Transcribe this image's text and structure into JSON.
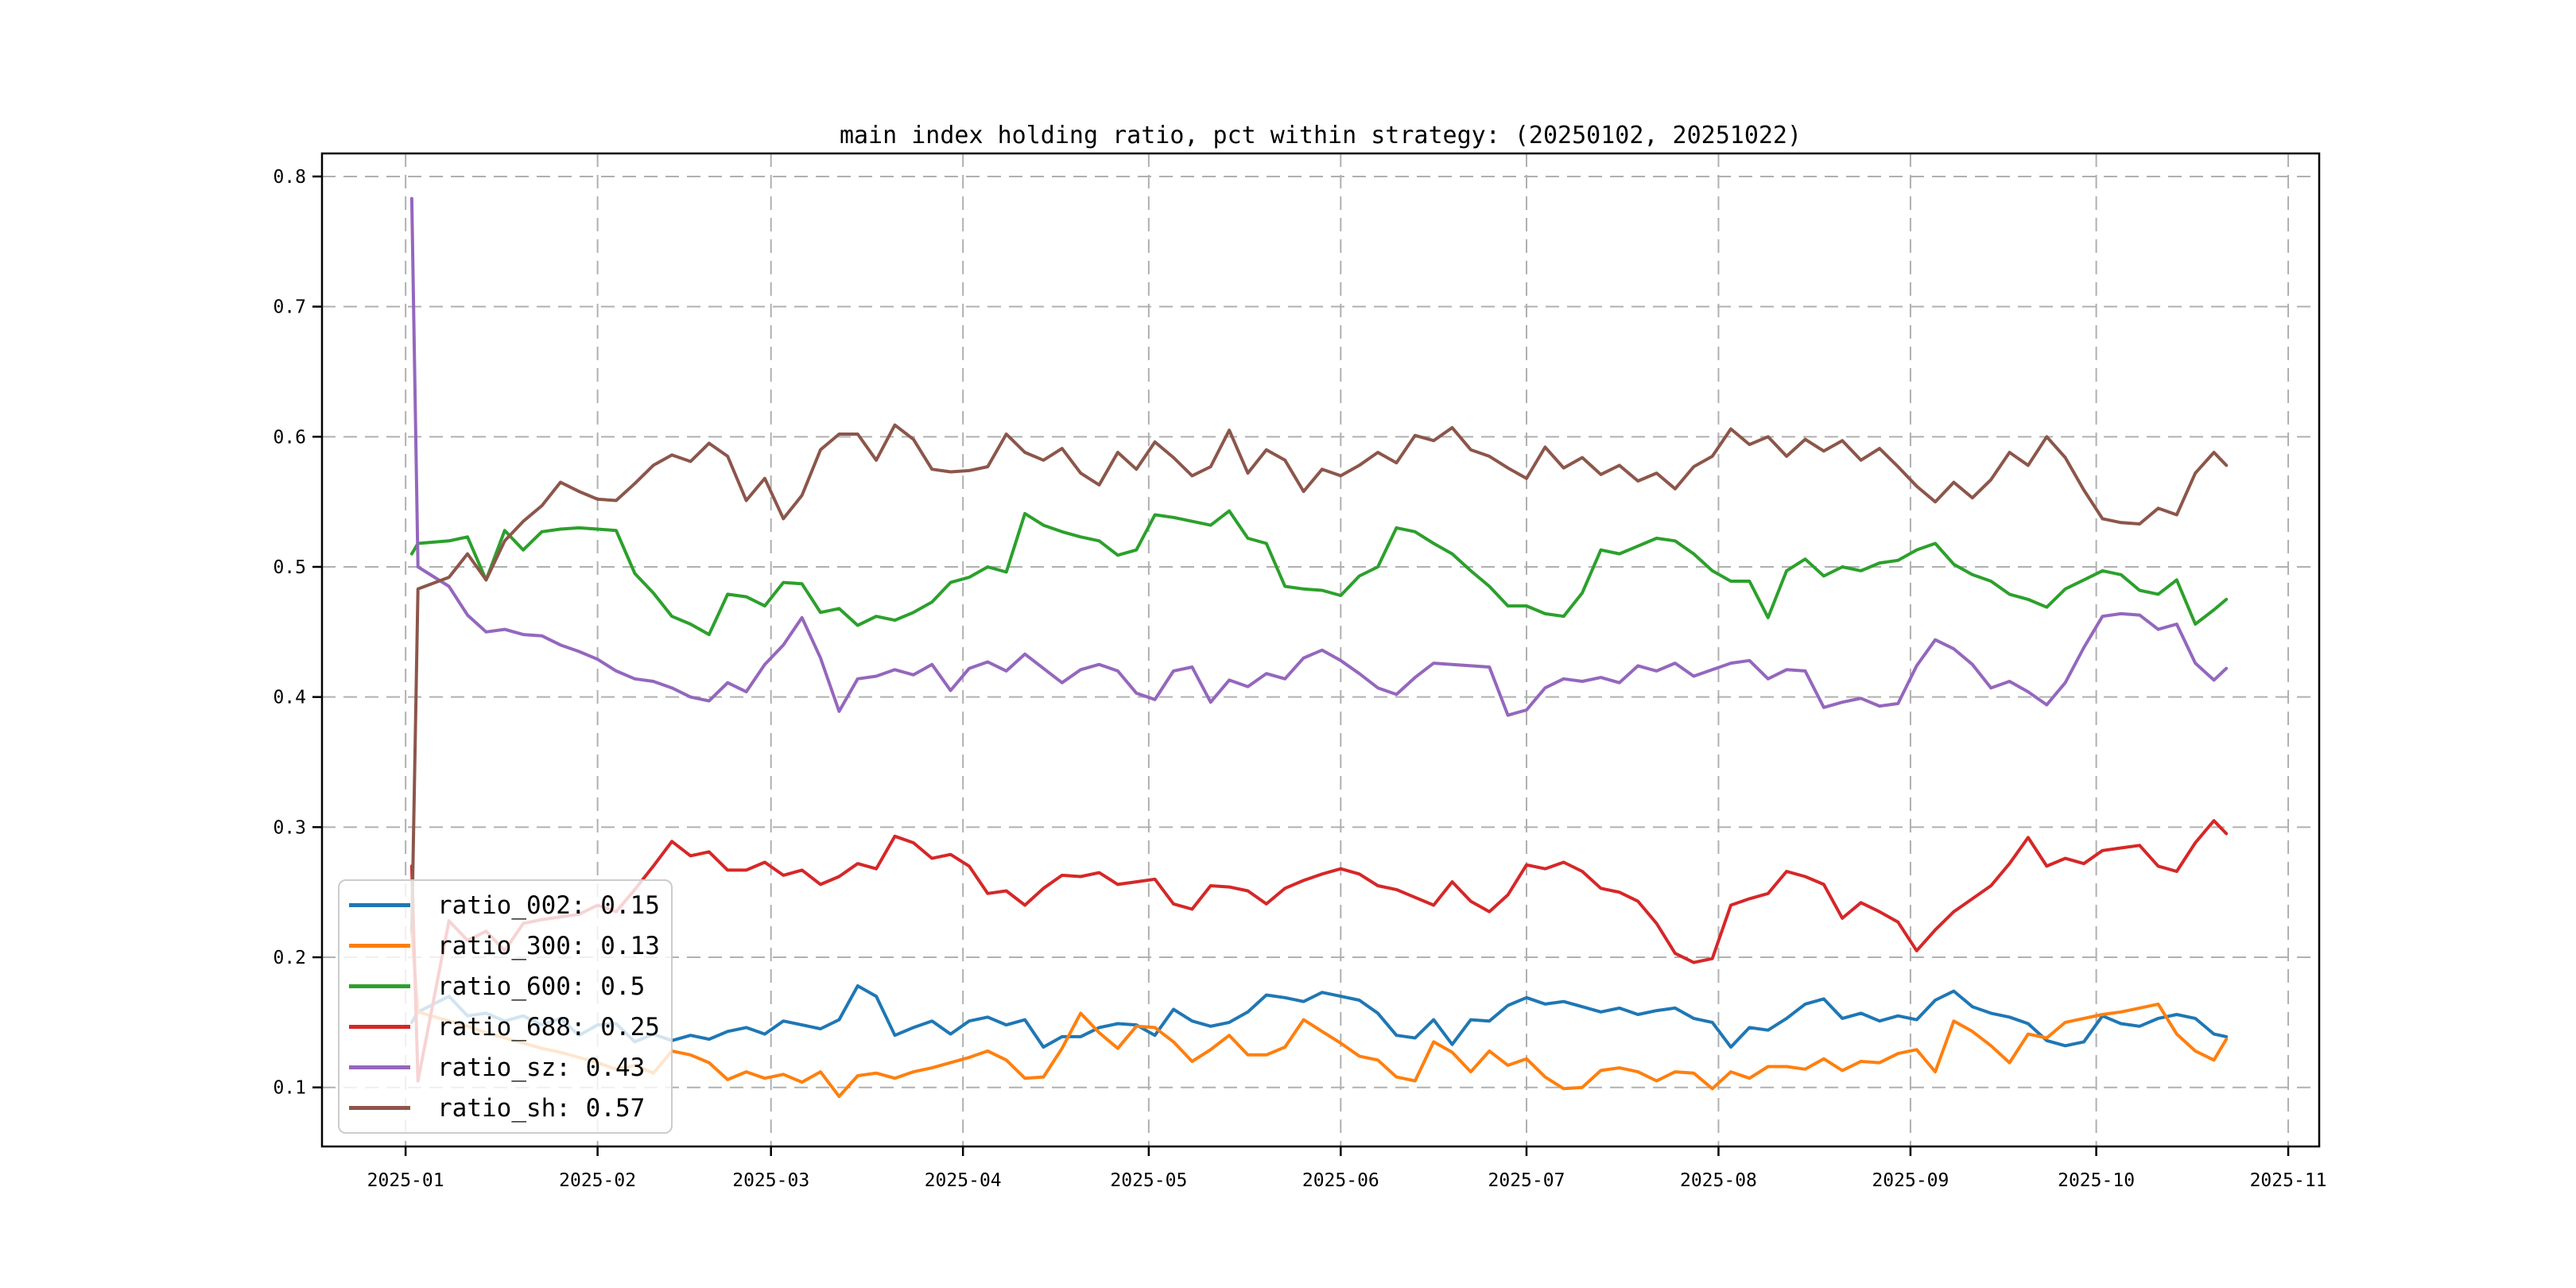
{
  "chart_data": {
    "type": "line",
    "title": "main index holding ratio, pct within strategy: (20250102, 20251022)",
    "xlabel": "",
    "ylabel": "",
    "grid": true,
    "legend_position": "lower left",
    "x_tick_labels": [
      "2025-01",
      "2025-02",
      "2025-03",
      "2025-04",
      "2025-05",
      "2025-06",
      "2025-07",
      "2025-08",
      "2025-09",
      "2025-10",
      "2025-11"
    ],
    "x_tick_days": [
      0,
      31,
      59,
      90,
      120,
      151,
      181,
      212,
      243,
      273,
      304
    ],
    "xlim_days": [
      -13.5,
      309
    ],
    "y_ticks": [
      0.1,
      0.2,
      0.3,
      0.4,
      0.5,
      0.6,
      0.7,
      0.8
    ],
    "y_tick_labels": [
      "0.1",
      "0.2",
      "0.3",
      "0.4",
      "0.5",
      "0.6",
      "0.7",
      "0.8"
    ],
    "ylim": [
      0.0546,
      0.8177
    ],
    "colors": {
      "blue": "#1f77b4",
      "orange": "#ff7f0e",
      "green": "#2ca02c",
      "red": "#d62728",
      "purple": "#9467bd",
      "brown": "#8c564b",
      "grid": "#b0b0b0",
      "axis": "#000000",
      "legend_border": "#cccccc"
    },
    "x_days": [
      1,
      2,
      7,
      10,
      13,
      16,
      19,
      22,
      25,
      28,
      31,
      34,
      37,
      40,
      43,
      46,
      49,
      52,
      55,
      58,
      61,
      64,
      67,
      70,
      73,
      76,
      79,
      82,
      85,
      88,
      91,
      94,
      97,
      100,
      103,
      106,
      109,
      112,
      115,
      118,
      121,
      124,
      127,
      130,
      133,
      136,
      139,
      142,
      145,
      148,
      151,
      154,
      157,
      160,
      163,
      166,
      169,
      172,
      175,
      178,
      181,
      184,
      187,
      190,
      193,
      196,
      199,
      202,
      205,
      208,
      211,
      214,
      217,
      220,
      223,
      226,
      229,
      232,
      235,
      238,
      241,
      244,
      247,
      250,
      253,
      256,
      259,
      262,
      265,
      268,
      271,
      274,
      277,
      280,
      283,
      286,
      289,
      292,
      294
    ],
    "series": [
      {
        "name": "ratio_002",
        "legend_label": "ratio_002: 0.15",
        "color": "#1f77b4",
        "values": [
          0.15,
          0.158,
          0.17,
          0.155,
          0.157,
          0.151,
          0.155,
          0.148,
          0.153,
          0.14,
          0.148,
          0.149,
          0.135,
          0.141,
          0.136,
          0.14,
          0.137,
          0.143,
          0.146,
          0.141,
          0.151,
          0.148,
          0.145,
          0.152,
          0.178,
          0.17,
          0.14,
          0.146,
          0.151,
          0.141,
          0.151,
          0.154,
          0.148,
          0.152,
          0.131,
          0.139,
          0.139,
          0.146,
          0.149,
          0.148,
          0.14,
          0.16,
          0.151,
          0.147,
          0.15,
          0.158,
          0.171,
          0.169,
          0.166,
          0.173,
          0.17,
          0.167,
          0.157,
          0.14,
          0.138,
          0.152,
          0.133,
          0.152,
          0.151,
          0.163,
          0.169,
          0.164,
          0.166,
          0.162,
          0.158,
          0.161,
          0.156,
          0.159,
          0.161,
          0.153,
          0.15,
          0.131,
          0.146,
          0.144,
          0.153,
          0.164,
          0.168,
          0.153,
          0.157,
          0.151,
          0.155,
          0.152,
          0.167,
          0.174,
          0.162,
          0.157,
          0.154,
          0.149,
          0.136,
          0.132,
          0.135,
          0.155,
          0.149,
          0.147,
          0.153,
          0.156,
          0.153,
          0.141,
          0.139
        ]
      },
      {
        "name": "ratio_300",
        "legend_label": "ratio_300: 0.13",
        "color": "#ff7f0e",
        "values": [
          0.22,
          0.158,
          0.151,
          0.147,
          0.142,
          0.138,
          0.134,
          0.13,
          0.127,
          0.123,
          0.119,
          0.114,
          0.117,
          0.111,
          0.128,
          0.125,
          0.119,
          0.106,
          0.112,
          0.107,
          0.11,
          0.104,
          0.112,
          0.093,
          0.109,
          0.111,
          0.107,
          0.112,
          0.115,
          0.119,
          0.123,
          0.128,
          0.121,
          0.107,
          0.108,
          0.13,
          0.157,
          0.142,
          0.13,
          0.147,
          0.146,
          0.135,
          0.12,
          0.129,
          0.14,
          0.125,
          0.125,
          0.131,
          0.152,
          0.143,
          0.134,
          0.124,
          0.121,
          0.108,
          0.105,
          0.135,
          0.127,
          0.112,
          0.128,
          0.117,
          0.122,
          0.108,
          0.099,
          0.1,
          0.113,
          0.115,
          0.112,
          0.105,
          0.112,
          0.111,
          0.099,
          0.112,
          0.107,
          0.116,
          0.116,
          0.114,
          0.122,
          0.113,
          0.12,
          0.119,
          0.126,
          0.129,
          0.112,
          0.151,
          0.143,
          0.132,
          0.119,
          0.141,
          0.138,
          0.15,
          0.153,
          0.156,
          0.158,
          0.161,
          0.164,
          0.141,
          0.128,
          0.121,
          0.137
        ]
      },
      {
        "name": "ratio_600",
        "legend_label": "ratio_600: 0.5",
        "color": "#2ca02c",
        "values": [
          0.51,
          0.518,
          0.52,
          0.523,
          0.49,
          0.528,
          0.513,
          0.527,
          0.529,
          0.53,
          0.529,
          0.528,
          0.495,
          0.48,
          0.462,
          0.456,
          0.448,
          0.479,
          0.477,
          0.47,
          0.488,
          0.487,
          0.465,
          0.468,
          0.455,
          0.462,
          0.459,
          0.465,
          0.473,
          0.488,
          0.492,
          0.5,
          0.496,
          0.541,
          0.532,
          0.527,
          0.523,
          0.52,
          0.509,
          0.513,
          0.54,
          0.538,
          0.535,
          0.532,
          0.543,
          0.522,
          0.518,
          0.485,
          0.483,
          0.482,
          0.478,
          0.493,
          0.5,
          0.53,
          0.527,
          0.518,
          0.51,
          0.497,
          0.485,
          0.47,
          0.47,
          0.464,
          0.462,
          0.48,
          0.513,
          0.51,
          0.516,
          0.522,
          0.52,
          0.51,
          0.497,
          0.489,
          0.489,
          0.461,
          0.497,
          0.506,
          0.493,
          0.5,
          0.497,
          0.503,
          0.505,
          0.513,
          0.518,
          0.502,
          0.494,
          0.489,
          0.479,
          0.475,
          0.469,
          0.483,
          0.49,
          0.497,
          0.494,
          0.482,
          0.479,
          0.49,
          0.456,
          0.467,
          0.475
        ]
      },
      {
        "name": "ratio_688",
        "legend_label": "ratio_688: 0.25",
        "color": "#d62728",
        "values": [
          0.27,
          0.105,
          0.228,
          0.213,
          0.22,
          0.205,
          0.226,
          0.229,
          0.231,
          0.233,
          0.24,
          0.235,
          0.252,
          0.27,
          0.289,
          0.278,
          0.281,
          0.267,
          0.267,
          0.273,
          0.263,
          0.267,
          0.256,
          0.262,
          0.272,
          0.268,
          0.293,
          0.288,
          0.276,
          0.279,
          0.27,
          0.249,
          0.251,
          0.24,
          0.253,
          0.263,
          0.262,
          0.265,
          0.256,
          0.258,
          0.26,
          0.241,
          0.237,
          0.255,
          0.254,
          0.251,
          0.241,
          0.253,
          0.259,
          0.264,
          0.268,
          0.264,
          0.255,
          0.252,
          0.246,
          0.24,
          0.258,
          0.243,
          0.235,
          0.248,
          0.271,
          0.268,
          0.273,
          0.266,
          0.253,
          0.25,
          0.243,
          0.226,
          0.203,
          0.196,
          0.199,
          0.24,
          0.245,
          0.249,
          0.266,
          0.262,
          0.256,
          0.23,
          0.242,
          0.235,
          0.227,
          0.205,
          0.221,
          0.235,
          0.245,
          0.255,
          0.272,
          0.292,
          0.27,
          0.276,
          0.272,
          0.282,
          0.284,
          0.286,
          0.27,
          0.266,
          0.288,
          0.305,
          0.295
        ]
      },
      {
        "name": "ratio_sz",
        "legend_label": "ratio_sz: 0.43",
        "color": "#9467bd",
        "values": [
          0.783,
          0.5,
          0.485,
          0.463,
          0.45,
          0.452,
          0.448,
          0.447,
          0.44,
          0.435,
          0.429,
          0.42,
          0.414,
          0.412,
          0.407,
          0.4,
          0.397,
          0.411,
          0.404,
          0.425,
          0.44,
          0.461,
          0.43,
          0.389,
          0.414,
          0.416,
          0.421,
          0.417,
          0.425,
          0.405,
          0.422,
          0.427,
          0.42,
          0.433,
          0.422,
          0.411,
          0.421,
          0.425,
          0.42,
          0.403,
          0.398,
          0.42,
          0.423,
          0.396,
          0.413,
          0.408,
          0.418,
          0.414,
          0.43,
          0.436,
          0.428,
          0.418,
          0.407,
          0.402,
          0.415,
          0.426,
          0.425,
          0.424,
          0.423,
          0.386,
          0.39,
          0.407,
          0.414,
          0.412,
          0.415,
          0.411,
          0.424,
          0.42,
          0.426,
          0.416,
          0.421,
          0.426,
          0.428,
          0.414,
          0.421,
          0.42,
          0.392,
          0.396,
          0.399,
          0.393,
          0.395,
          0.424,
          0.444,
          0.437,
          0.425,
          0.407,
          0.412,
          0.404,
          0.394,
          0.411,
          0.438,
          0.462,
          0.464,
          0.463,
          0.452,
          0.456,
          0.426,
          0.413,
          0.422
        ]
      },
      {
        "name": "ratio_sh",
        "legend_label": "ratio_sh: 0.57",
        "color": "#8c564b",
        "values": [
          0.22,
          0.483,
          0.492,
          0.51,
          0.49,
          0.52,
          0.535,
          0.547,
          0.565,
          0.558,
          0.552,
          0.551,
          0.564,
          0.578,
          0.586,
          0.581,
          0.595,
          0.585,
          0.551,
          0.568,
          0.537,
          0.555,
          0.59,
          0.602,
          0.602,
          0.582,
          0.609,
          0.598,
          0.575,
          0.573,
          0.574,
          0.577,
          0.602,
          0.588,
          0.582,
          0.591,
          0.572,
          0.563,
          0.588,
          0.575,
          0.596,
          0.584,
          0.57,
          0.577,
          0.605,
          0.572,
          0.59,
          0.582,
          0.558,
          0.575,
          0.57,
          0.578,
          0.588,
          0.58,
          0.601,
          0.597,
          0.607,
          0.59,
          0.585,
          0.576,
          0.568,
          0.592,
          0.576,
          0.584,
          0.571,
          0.578,
          0.566,
          0.572,
          0.56,
          0.577,
          0.585,
          0.606,
          0.594,
          0.6,
          0.585,
          0.598,
          0.589,
          0.597,
          0.582,
          0.591,
          0.577,
          0.562,
          0.55,
          0.565,
          0.553,
          0.567,
          0.588,
          0.578,
          0.6,
          0.584,
          0.559,
          0.537,
          0.534,
          0.533,
          0.545,
          0.54,
          0.572,
          0.588,
          0.578
        ]
      }
    ]
  }
}
